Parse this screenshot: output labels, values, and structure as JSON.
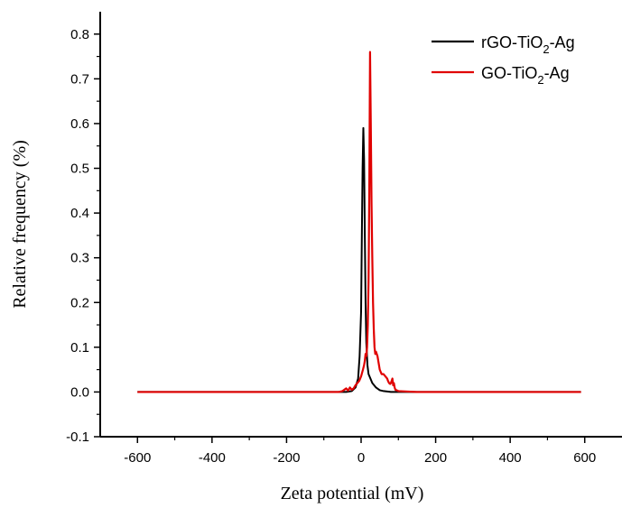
{
  "chart_data": {
    "type": "line",
    "title": "",
    "xlabel": "Zeta potential (mV)",
    "ylabel": "Relative frequency (%)",
    "xlim": [
      -700,
      700
    ],
    "ylim": [
      -0.1,
      0.85
    ],
    "x_ticks": [
      -600,
      -400,
      -200,
      0,
      200,
      400,
      600
    ],
    "y_ticks": [
      -0.1,
      0.0,
      0.1,
      0.2,
      0.3,
      0.4,
      0.5,
      0.6,
      0.7,
      0.8
    ],
    "x_tick_labels": [
      "-600",
      "-400",
      "-200",
      "0",
      "200",
      "400",
      "600"
    ],
    "y_tick_labels": [
      "-0.1",
      "0.0",
      "0.1",
      "0.2",
      "0.3",
      "0.4",
      "0.5",
      "0.6",
      "0.7",
      "0.8"
    ],
    "grid": false,
    "legend_position": "top-right",
    "series": [
      {
        "name_parts": [
          "rGO-TiO",
          "2",
          "-Ag"
        ],
        "color": "#000000",
        "x": [
          -600,
          -100,
          -40,
          -25,
          -15,
          -8,
          -4,
          0,
          2,
          4,
          6,
          8,
          10,
          12,
          14,
          17,
          20,
          25,
          30,
          40,
          50,
          60,
          80,
          100,
          590
        ],
        "y": [
          0,
          0,
          0,
          0.002,
          0.01,
          0.03,
          0.08,
          0.18,
          0.35,
          0.5,
          0.59,
          0.52,
          0.35,
          0.2,
          0.11,
          0.06,
          0.04,
          0.03,
          0.02,
          0.01,
          0.004,
          0.002,
          0,
          0,
          0
        ]
      },
      {
        "name_parts": [
          "GO-TiO",
          "2",
          "-Ag"
        ],
        "color": "#e00000",
        "x": [
          -600,
          -60,
          -50,
          -45,
          -40,
          -35,
          -30,
          -25,
          -20,
          -15,
          -10,
          -5,
          0,
          5,
          8,
          10,
          12,
          14,
          16,
          18,
          20,
          22,
          24,
          26,
          28,
          30,
          32,
          34,
          36,
          38,
          40,
          44,
          48,
          50,
          55,
          60,
          65,
          70,
          72,
          75,
          78,
          80,
          84,
          86,
          88,
          90,
          92,
          100,
          150,
          590
        ],
        "y": [
          0,
          0,
          0.002,
          0.005,
          0.008,
          0.003,
          0.01,
          0.005,
          0.008,
          0.015,
          0.02,
          0.025,
          0.035,
          0.05,
          0.06,
          0.07,
          0.085,
          0.08,
          0.1,
          0.15,
          0.25,
          0.45,
          0.76,
          0.6,
          0.42,
          0.3,
          0.2,
          0.14,
          0.1,
          0.085,
          0.09,
          0.08,
          0.06,
          0.05,
          0.04,
          0.04,
          0.035,
          0.03,
          0.025,
          0.02,
          0.018,
          0.02,
          0.03,
          0.015,
          0.02,
          0.01,
          0.005,
          0.002,
          0,
          0
        ]
      }
    ]
  }
}
